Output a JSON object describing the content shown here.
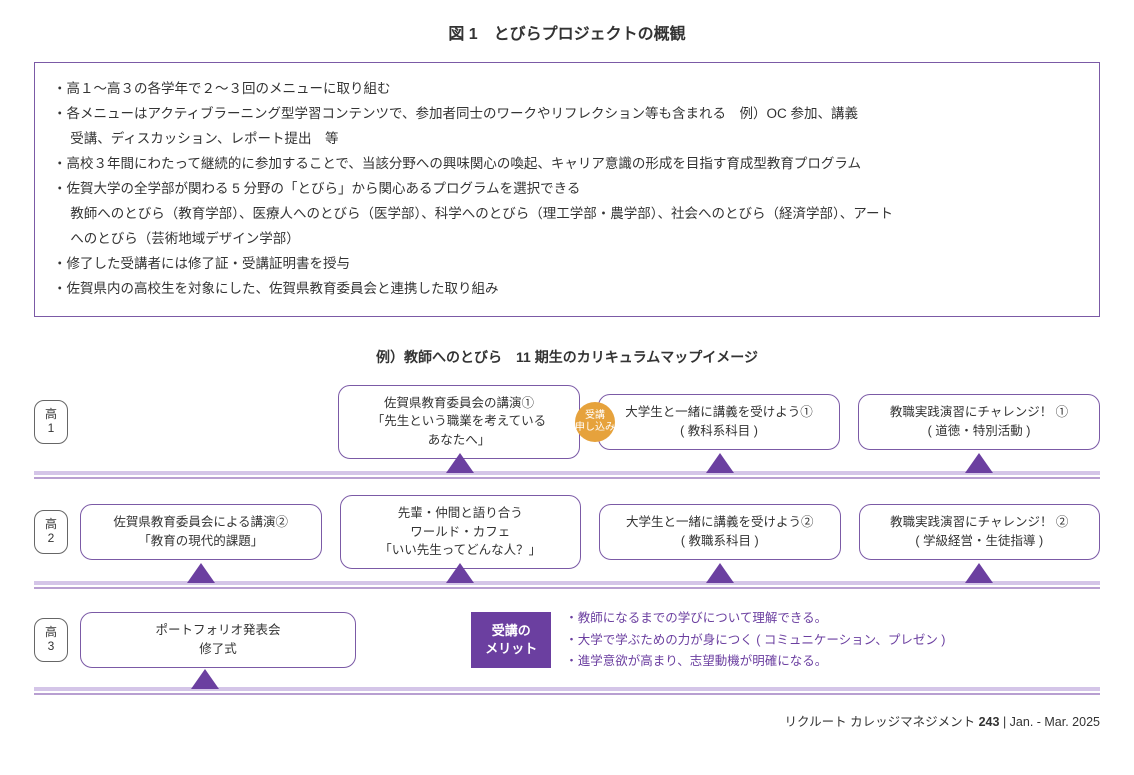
{
  "colors": {
    "border": "#7b5aa6",
    "triangle": "#6b3fa0",
    "timeline_top": "#d4c5e8",
    "timeline_bot": "#b89fd1",
    "badge_orange": "#e6a23c",
    "merit_text": "#6b3fa0",
    "text": "#333333",
    "bg": "#ffffff"
  },
  "title": "図 1　とびらプロジェクトの概観",
  "overview": {
    "lines": [
      "・高１～高３の各学年で２～３回のメニューに取り組む",
      "・各メニューはアクティブラーニング型学習コンテンツで、参加者同士のワークやリフレクション等も含まれる　例）OC 参加、講義",
      "　 受講、ディスカッション、レポート提出　等",
      "・高校３年間にわたって継続的に参加することで、当該分野への興味関心の喚起、キャリア意識の形成を目指す育成型教育プログラム",
      "・佐賀大学の全学部が関わる 5 分野の「とびら」から関心あるプログラムを選択できる",
      "　 教師へのとびら（教育学部）、医療人へのとびら（医学部）、科学へのとびら（理工学部・農学部）、社会へのとびら（経済学部）、アート",
      "　 へのとびら（芸術地域デザイン学部）",
      "・修了した受講者には修了証・受講証明書を授与",
      "・佐賀県内の高校生を対象にした、佐賀県教育委員会と連携した取り組み"
    ]
  },
  "subtitle": "例）教師へのとびら　11 期生のカリキュラムマップイメージ",
  "rows": [
    {
      "grade_top": "高",
      "grade_bot": "1",
      "cards": [
        {
          "lines": [],
          "empty": true
        },
        {
          "lines": [
            "佐賀県教育委員会の講演①",
            "「先生という職業を考えている",
            "あなたへ」"
          ]
        },
        {
          "lines": [
            "大学生と一緒に講義を受けよう①",
            "( 教科系科目 )"
          ],
          "badge": {
            "l1": "受講",
            "l2": "申し込み"
          }
        },
        {
          "lines": [
            "教職実践演習にチャレンジ！ ①",
            "( 道徳・特別活動 )"
          ]
        }
      ],
      "triangles": [
        false,
        true,
        true,
        true
      ]
    },
    {
      "grade_top": "高",
      "grade_bot": "2",
      "cards": [
        {
          "lines": [
            "佐賀県教育委員会による講演②",
            "「教育の現代的課題」"
          ]
        },
        {
          "lines": [
            "先輩・仲間と語り合う",
            "ワールド・カフェ",
            "「いい先生ってどんな人？」"
          ]
        },
        {
          "lines": [
            "大学生と一緒に講義を受けよう②",
            "( 教職系科目 )"
          ]
        },
        {
          "lines": [
            "教職実践演習にチャレンジ！ ②",
            "( 学級経営・生徒指導 )"
          ]
        }
      ],
      "triangles": [
        true,
        true,
        true,
        true
      ]
    }
  ],
  "row3": {
    "grade_top": "高",
    "grade_bot": "3",
    "card": {
      "lines": [
        "ポートフォリオ発表会",
        "修了式"
      ]
    },
    "merit_label_l1": "受講の",
    "merit_label_l2": "メリット",
    "merits": [
      "・教師になるまでの学びについて理解できる。",
      "・大学で学ぶための力が身につく ( コミュニケーション、プレゼン )",
      "・進学意欲が高まり、志望動機が明確になる。"
    ],
    "triangles": [
      true,
      false,
      false,
      false
    ]
  },
  "footer": {
    "text_pre": "リクルート カレッジマネジメント ",
    "num": "243",
    "text_post": "  |  Jan. - Mar. 2025"
  }
}
